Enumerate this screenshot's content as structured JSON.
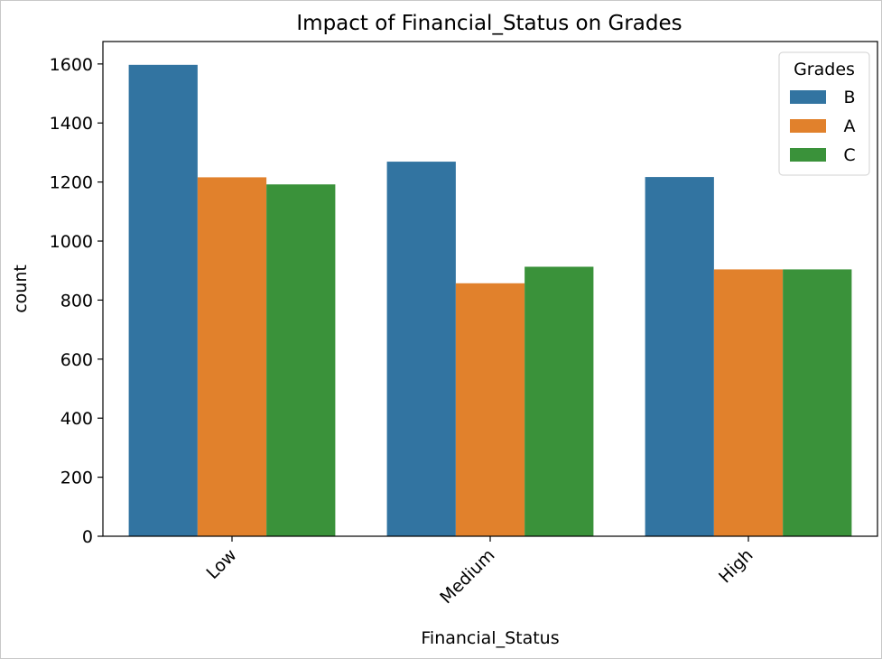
{
  "chart_data": {
    "type": "bar",
    "title": "Impact of Financial_Status on Grades",
    "xlabel": "Financial_Status",
    "ylabel": "count",
    "categories": [
      "Low",
      "Medium",
      "High"
    ],
    "series": [
      {
        "name": "B",
        "color": "#3274a1",
        "values": [
          1597,
          1269,
          1217
        ]
      },
      {
        "name": "A",
        "color": "#e1812c",
        "values": [
          1216,
          857,
          904
        ]
      },
      {
        "name": "C",
        "color": "#3a923a",
        "values": [
          1192,
          913,
          904
        ]
      }
    ],
    "ylim": [
      0,
      1676
    ],
    "yticks": [
      "0",
      "200",
      "400",
      "600",
      "800",
      "1000",
      "1200",
      "1400",
      "1600"
    ],
    "legend": {
      "title": "Grades",
      "position": "top-right"
    },
    "grid": false
  }
}
